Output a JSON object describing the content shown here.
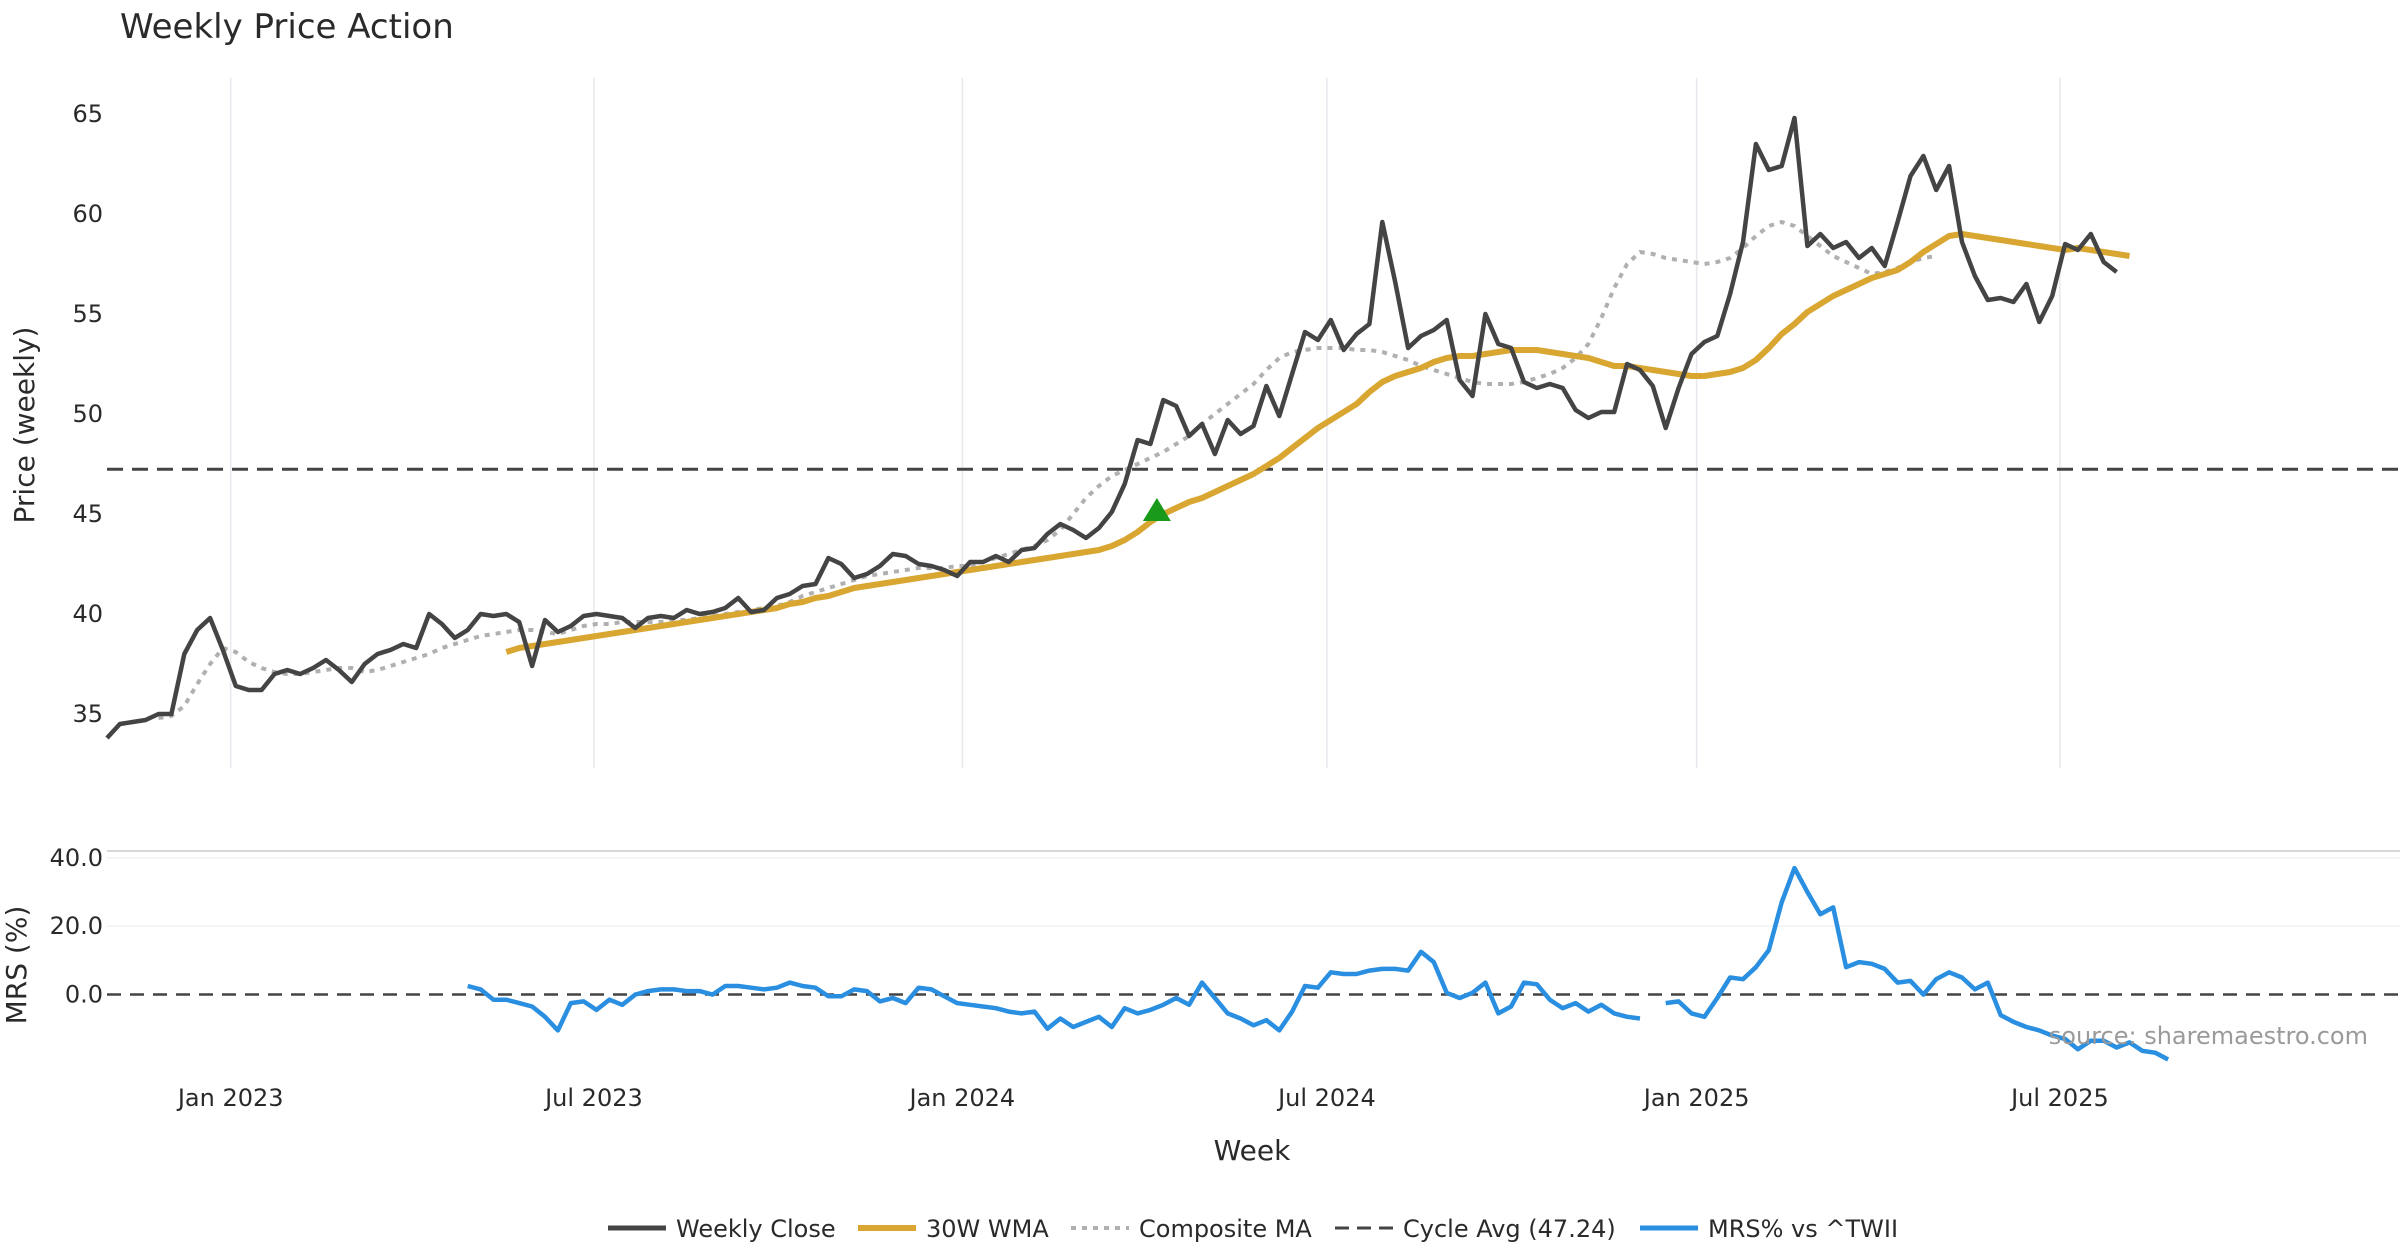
{
  "colors": {
    "close": "#444444",
    "wma": "#d8a631",
    "composite": "#b0b0b0",
    "cycle": "#444444",
    "mrs": "#2a8fe0",
    "signal": "#1a9a1a"
  },
  "chart_data": [
    {
      "type": "line",
      "title": "Weekly Price Action",
      "ylabel": "Price (weekly)",
      "xlabel": "Week",
      "ylim": [
        32.3,
        66.8
      ],
      "yticks": [
        35,
        40,
        45,
        50,
        55,
        60,
        65
      ],
      "grid": "vertical",
      "x_start": "2022-11-28",
      "x_step_weeks": 1,
      "x_range_weeks": [
        0,
        178
      ],
      "xticks": [
        {
          "label": "Jan 2023",
          "week": 9.6
        },
        {
          "label": "Jul 2023",
          "week": 37.8
        },
        {
          "label": "Jan 2024",
          "week": 66.4
        },
        {
          "label": "Jul 2024",
          "week": 94.7
        },
        {
          "label": "Jan 2025",
          "week": 123.4
        },
        {
          "label": "Jul 2025",
          "week": 151.6
        }
      ],
      "series": [
        {
          "name": "Weekly Close",
          "start_week": 0,
          "values": [
            33.8,
            34.5,
            34.6,
            34.7,
            35.0,
            35.0,
            38.0,
            39.2,
            39.8,
            38.2,
            36.4,
            36.2,
            36.2,
            37.0,
            37.2,
            37.0,
            37.3,
            37.7,
            37.2,
            36.6,
            37.5,
            38.0,
            38.2,
            38.5,
            38.3,
            40.0,
            39.5,
            38.8,
            39.2,
            40.0,
            39.9,
            40.0,
            39.6,
            37.4,
            39.7,
            39.1,
            39.4,
            39.9,
            40.0,
            39.9,
            39.8,
            39.3,
            39.8,
            39.9,
            39.8,
            40.2,
            40.0,
            40.1,
            40.3,
            40.8,
            40.1,
            40.2,
            40.8,
            41.0,
            41.4,
            41.5,
            42.8,
            42.5,
            41.8,
            42.0,
            42.4,
            43.0,
            42.9,
            42.5,
            42.4,
            42.2,
            41.9,
            42.6,
            42.6,
            42.9,
            42.6,
            43.2,
            43.3,
            44.0,
            44.5,
            44.2,
            43.8,
            44.3,
            45.1,
            46.5,
            48.7,
            48.5,
            50.7,
            50.4,
            48.9,
            49.5,
            48.0,
            49.7,
            49.0,
            49.4,
            51.4,
            49.9,
            52.0,
            54.1,
            53.7,
            54.7,
            53.2,
            54.0,
            54.5,
            59.6,
            56.6,
            53.3,
            53.9,
            54.2,
            54.7,
            51.7,
            50.9,
            55.0,
            53.5,
            53.3,
            51.6,
            51.3,
            51.5,
            51.3,
            50.2,
            49.8,
            50.1,
            50.1,
            52.5,
            52.2,
            51.4,
            49.3,
            51.3,
            53.0,
            53.6,
            53.9,
            56.0,
            58.6,
            63.5,
            62.2,
            62.4,
            64.8,
            58.4,
            59.0,
            58.3,
            58.6,
            57.8,
            58.3,
            57.4,
            59.6,
            61.9,
            62.9,
            61.2,
            62.4,
            58.6,
            56.9,
            55.7,
            55.8,
            55.6,
            56.5,
            54.6,
            55.9,
            58.5,
            58.2,
            59.0,
            57.6,
            57.1
          ]
        },
        {
          "name": "30W WMA",
          "start_week": 31,
          "values": [
            38.1,
            38.3,
            38.4,
            38.5,
            38.6,
            38.7,
            38.8,
            38.9,
            39.0,
            39.1,
            39.2,
            39.3,
            39.4,
            39.5,
            39.6,
            39.7,
            39.8,
            39.9,
            40.0,
            40.1,
            40.2,
            40.3,
            40.5,
            40.6,
            40.8,
            40.9,
            41.1,
            41.3,
            41.4,
            41.5,
            41.6,
            41.7,
            41.8,
            41.9,
            42.0,
            42.1,
            42.2,
            42.3,
            42.4,
            42.5,
            42.6,
            42.7,
            42.8,
            42.9,
            43.0,
            43.1,
            43.2,
            43.4,
            43.7,
            44.1,
            44.6,
            45.0,
            45.3,
            45.6,
            45.8,
            46.1,
            46.4,
            46.7,
            47.0,
            47.4,
            47.8,
            48.3,
            48.8,
            49.3,
            49.7,
            50.1,
            50.5,
            51.1,
            51.6,
            51.9,
            52.1,
            52.3,
            52.6,
            52.8,
            52.9,
            52.9,
            53.0,
            53.1,
            53.2,
            53.2,
            53.2,
            53.1,
            53.0,
            52.9,
            52.8,
            52.6,
            52.4,
            52.4,
            52.3,
            52.2,
            52.1,
            52.0,
            51.9,
            51.9,
            52.0,
            52.1,
            52.3,
            52.7,
            53.3,
            54.0,
            54.5,
            55.1,
            55.5,
            55.9,
            56.2,
            56.5,
            56.8,
            57.0,
            57.2,
            57.6,
            58.1,
            58.5,
            58.9,
            59.0,
            58.9,
            58.8,
            58.7,
            58.6,
            58.5,
            58.4,
            58.3,
            58.2,
            58.3,
            58.2,
            58.1,
            58.0,
            57.9
          ]
        },
        {
          "name": "Composite MA",
          "start_week": 4,
          "values": [
            34.8,
            34.9,
            35.4,
            36.5,
            37.5,
            38.3,
            38.1,
            37.6,
            37.3,
            37.1,
            37.0,
            37.0,
            37.1,
            37.2,
            37.3,
            37.3,
            37.1,
            37.2,
            37.4,
            37.6,
            37.8,
            38.0,
            38.3,
            38.5,
            38.7,
            38.9,
            39.0,
            39.1,
            39.2,
            39.2,
            39.1,
            39.0,
            39.2,
            39.4,
            39.5,
            39.5,
            39.6,
            39.6,
            39.6,
            39.6,
            39.7,
            39.7,
            39.8,
            39.9,
            40.0,
            40.1,
            40.2,
            40.3,
            40.4,
            40.6,
            40.9,
            41.1,
            41.3,
            41.5,
            41.7,
            41.9,
            42.0,
            42.1,
            42.2,
            42.3,
            42.3,
            42.3,
            42.4,
            42.4,
            42.6,
            42.8,
            43.0,
            43.2,
            43.4,
            43.7,
            44.2,
            45.0,
            45.8,
            46.4,
            46.9,
            47.2,
            47.5,
            47.8,
            48.1,
            48.5,
            48.9,
            49.5,
            50.0,
            50.5,
            51.0,
            51.5,
            52.2,
            52.8,
            53.1,
            53.2,
            53.3,
            53.3,
            53.3,
            53.2,
            53.2,
            53.1,
            52.9,
            52.7,
            52.4,
            52.2,
            52.0,
            51.8,
            51.6,
            51.5,
            51.5,
            51.5,
            51.6,
            51.8,
            52.0,
            52.3,
            52.8,
            53.5,
            54.8,
            56.3,
            57.5,
            58.1,
            58.0,
            57.8,
            57.7,
            57.6,
            57.5,
            57.6,
            57.8,
            58.3,
            58.9,
            59.4,
            59.6,
            59.4,
            58.9,
            58.4,
            57.9,
            57.6,
            57.3,
            57.0,
            57.1,
            57.3,
            57.6,
            57.8,
            57.9
          ]
        }
      ],
      "reference_lines": [
        {
          "name": "Cycle Avg (47.24)",
          "y": 47.24
        }
      ],
      "markers": [
        {
          "name": "signal-marker",
          "week": 81.5,
          "y": 45.2,
          "shape": "triangle-up"
        }
      ]
    },
    {
      "type": "line",
      "ylabel": "MRS (%)",
      "ylim": [
        -25,
        42
      ],
      "yticks": [
        0,
        20,
        40
      ],
      "ytick_labels": [
        "0.0",
        "20.0",
        "40.0"
      ],
      "series": [
        {
          "name": "MRS% vs ^TWII",
          "start_week": 28,
          "values": [
            2.5,
            1.5,
            -1.5,
            -1.5,
            -2.5,
            -3.5,
            -6.5,
            -10.5,
            -2.5,
            -2.0,
            -4.5,
            -1.5,
            -3.0,
            0.0,
            1.0,
            1.5,
            1.5,
            1.0,
            1.0,
            0.0,
            2.5,
            2.5,
            2.0,
            1.5,
            2.0,
            3.5,
            2.5,
            2.0,
            -0.5,
            -0.5,
            1.5,
            1.0,
            -2.0,
            -1.0,
            -2.5,
            2.0,
            1.5,
            -0.5,
            -2.5,
            -3.0,
            -3.5,
            -4.0,
            -5.0,
            -5.5,
            -5.0,
            -10.0,
            -7.0,
            -9.5,
            -8.0,
            -6.5,
            -9.5,
            -4.0,
            -5.5,
            -4.5,
            -3.0,
            -1.0,
            -3.0,
            3.5,
            -1.0,
            -5.5,
            -7.0,
            -9.0,
            -7.5,
            -10.5,
            -5.0,
            2.5,
            2.0,
            6.5,
            6.0,
            6.0,
            7.0,
            7.5,
            7.5,
            7.0,
            12.5,
            9.5,
            0.5,
            -1.0,
            0.5,
            3.5,
            -5.5,
            -3.5,
            3.5,
            3.0,
            -1.5,
            -4.0,
            -2.5,
            -5.0,
            -3.0,
            -5.5,
            -6.5,
            -7.0,
            null,
            -2.5,
            -2.0,
            -5.5,
            -6.5,
            -1.0,
            5.0,
            4.5,
            8.0,
            13.0,
            27.0,
            37.0,
            30.0,
            23.5,
            25.5,
            8.0,
            9.5,
            9.0,
            7.5,
            3.5,
            4.0,
            0.0,
            4.5,
            6.5,
            5.0,
            1.5,
            3.5,
            -6.0,
            -8.0,
            -9.5,
            -10.5,
            -12.0,
            -13.0,
            -16.0,
            -13.5,
            -13.5,
            -15.5,
            -14.0,
            -16.5,
            -17.0,
            -19.0
          ]
        }
      ],
      "reference_lines": [
        {
          "name": "zero-line",
          "y": 0
        }
      ]
    }
  ],
  "legend": {
    "items": [
      {
        "label": "Weekly Close",
        "style": "solid-dark"
      },
      {
        "label": "30W WMA",
        "style": "solid-gold"
      },
      {
        "label": "Composite MA",
        "style": "dotted-grey"
      },
      {
        "label": "Cycle Avg (47.24)",
        "style": "dashed-dark"
      },
      {
        "label": "MRS% vs ^TWII",
        "style": "solid-blue"
      }
    ]
  },
  "source_label": "source: sharemaestro.com"
}
